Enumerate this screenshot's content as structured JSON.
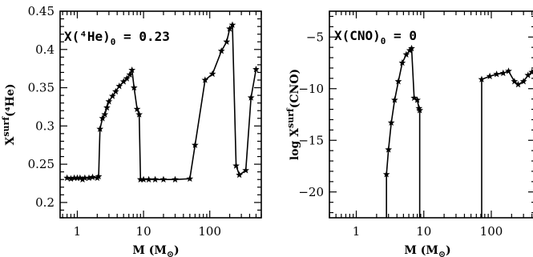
{
  "chart_data": [
    {
      "type": "line",
      "xscale": "log",
      "xlim": [
        0.55,
        600
      ],
      "ylim": [
        0.18,
        0.45
      ],
      "xticks": [
        1,
        10,
        100
      ],
      "xtick_labels": [
        "1",
        "10",
        "100"
      ],
      "yticks": [
        0.2,
        0.25,
        0.3,
        0.35,
        0.4,
        0.45
      ],
      "ytick_labels": [
        "0.2",
        "0.25",
        "0.3",
        "0.35",
        "0.4",
        "0.45"
      ],
      "xlabel": "M  (M",
      "xlabel_sub": "⊙",
      "xlabel_close": ")",
      "ylabel": "X",
      "ylabel_sup": "surf",
      "ylabel_tail": "(⁴He)",
      "annotation": {
        "prefix": "X(⁴He)",
        "sub": "0",
        "suffix": " = 0.23"
      },
      "marker": "star",
      "series": [
        {
          "x": [
            0.7,
            0.8,
            0.9,
            1.0,
            1.1,
            1.2,
            1.3,
            1.5,
            1.7,
            2.0,
            2.1,
            2.2,
            2.4,
            2.6,
            2.8,
            3.0,
            3.4,
            3.8,
            4.3,
            5.0,
            5.6,
            6.2,
            6.7,
            7.2,
            8.0,
            8.6,
            9.0,
            10.0,
            12.0,
            15.0,
            20.0,
            30.0,
            50.0,
            60.0,
            85.0,
            110.0,
            150.0,
            180.0,
            200.0,
            220.0,
            250.0,
            280.0,
            350.0,
            420.0,
            500.0
          ],
          "y": [
            0.232,
            0.231,
            0.232,
            0.232,
            0.232,
            0.23,
            0.232,
            0.232,
            0.233,
            0.232,
            0.234,
            0.296,
            0.31,
            0.315,
            0.324,
            0.332,
            0.339,
            0.345,
            0.352,
            0.358,
            0.362,
            0.367,
            0.373,
            0.35,
            0.322,
            0.315,
            0.23,
            0.23,
            0.23,
            0.23,
            0.23,
            0.23,
            0.231,
            0.275,
            0.36,
            0.368,
            0.398,
            0.41,
            0.427,
            0.432,
            0.248,
            0.236,
            0.242,
            0.337,
            0.374
          ]
        }
      ]
    },
    {
      "type": "line",
      "xscale": "log",
      "xlim": [
        0.4,
        450
      ],
      "ylim": [
        -22.5,
        -2.5
      ],
      "xticks": [
        1,
        10,
        100
      ],
      "xtick_labels": [
        "1",
        "10",
        "100"
      ],
      "yticks": [
        -20,
        -15,
        -10,
        -5
      ],
      "ytick_labels": [
        "−20",
        "−15",
        "−10",
        "−5"
      ],
      "xlabel": "M  (M",
      "xlabel_sub": "⊙",
      "xlabel_close": ")",
      "ylabel": "log X",
      "ylabel_sup": "surf",
      "ylabel_tail": "(CNO)",
      "annotation": {
        "prefix": "X(CNO)",
        "sub": "0",
        "suffix": " = 0"
      },
      "marker": "star",
      "series": [
        {
          "x": [
            2.8,
            2.8,
            3.0,
            3.3,
            3.7,
            4.2,
            4.8,
            5.5,
            6.2,
            6.6,
            7.2,
            8.0,
            8.5,
            8.7,
            8.7
          ],
          "y": [
            -22.5,
            -18.3,
            -15.9,
            -13.3,
            -11.1,
            -9.3,
            -7.5,
            -6.7,
            -6.3,
            -6.1,
            -10.9,
            -11.1,
            -11.9,
            -12.1,
            -22.5
          ]
        },
        {
          "x": [
            72,
            72,
            95,
            120,
            150,
            180,
            220,
            250,
            300,
            350,
            400,
            450
          ],
          "y": [
            -22.5,
            -9.1,
            -8.8,
            -8.6,
            -8.5,
            -8.3,
            -9.3,
            -9.6,
            -9.3,
            -8.7,
            -8.4,
            -8.3
          ]
        }
      ]
    }
  ]
}
